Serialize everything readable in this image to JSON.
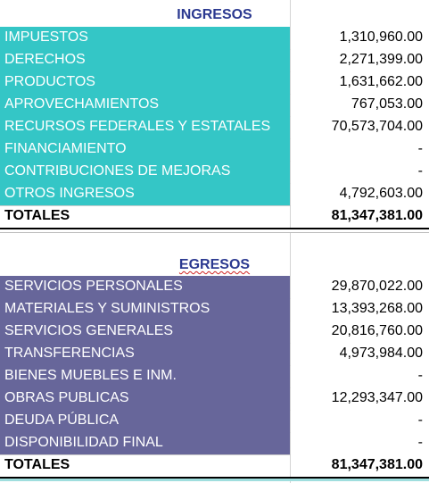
{
  "ingresos": {
    "title": "INGRESOS",
    "rows": [
      {
        "label": "IMPUESTOS",
        "value": "1,310,960.00"
      },
      {
        "label": "DERECHOS",
        "value": "2,271,399.00"
      },
      {
        "label": "PRODUCTOS",
        "value": "1,631,662.00"
      },
      {
        "label": "APROVECHAMIENTOS",
        "value": "767,053.00"
      },
      {
        "label": "RECURSOS FEDERALES Y ESTATALES",
        "value": "70,573,704.00"
      },
      {
        "label": "FINANCIAMIENTO",
        "value": "-"
      },
      {
        "label": "CONTRIBUCIONES DE MEJORAS",
        "value": "-"
      },
      {
        "label": "OTROS INGRESOS",
        "value": "4,792,603.00"
      }
    ],
    "total_label": "TOTALES",
    "total_value": "81,347,381.00",
    "fill_color": "#34c6c6"
  },
  "egresos": {
    "title": "EGRESOS",
    "rows": [
      {
        "label": "SERVICIOS PERSONALES",
        "value": "29,870,022.00"
      },
      {
        "label": "MATERIALES Y SUMINISTROS",
        "value": "13,393,268.00"
      },
      {
        "label": "SERVICIOS GENERALES",
        "value": "20,816,760.00"
      },
      {
        "label": "TRANSFERENCIAS",
        "value": "4,973,984.00"
      },
      {
        "label": "BIENES MUEBLES E INM.",
        "value": "-"
      },
      {
        "label": "OBRAS PUBLICAS",
        "value": "12,293,347.00"
      },
      {
        "label": "DEUDA PÚBLICA",
        "value": "-"
      },
      {
        "label": "DISPONIBILIDAD FINAL",
        "value": "-"
      }
    ],
    "total_label": "TOTALES",
    "total_value": "81,347,381.00",
    "fill_color": "#67669a"
  }
}
